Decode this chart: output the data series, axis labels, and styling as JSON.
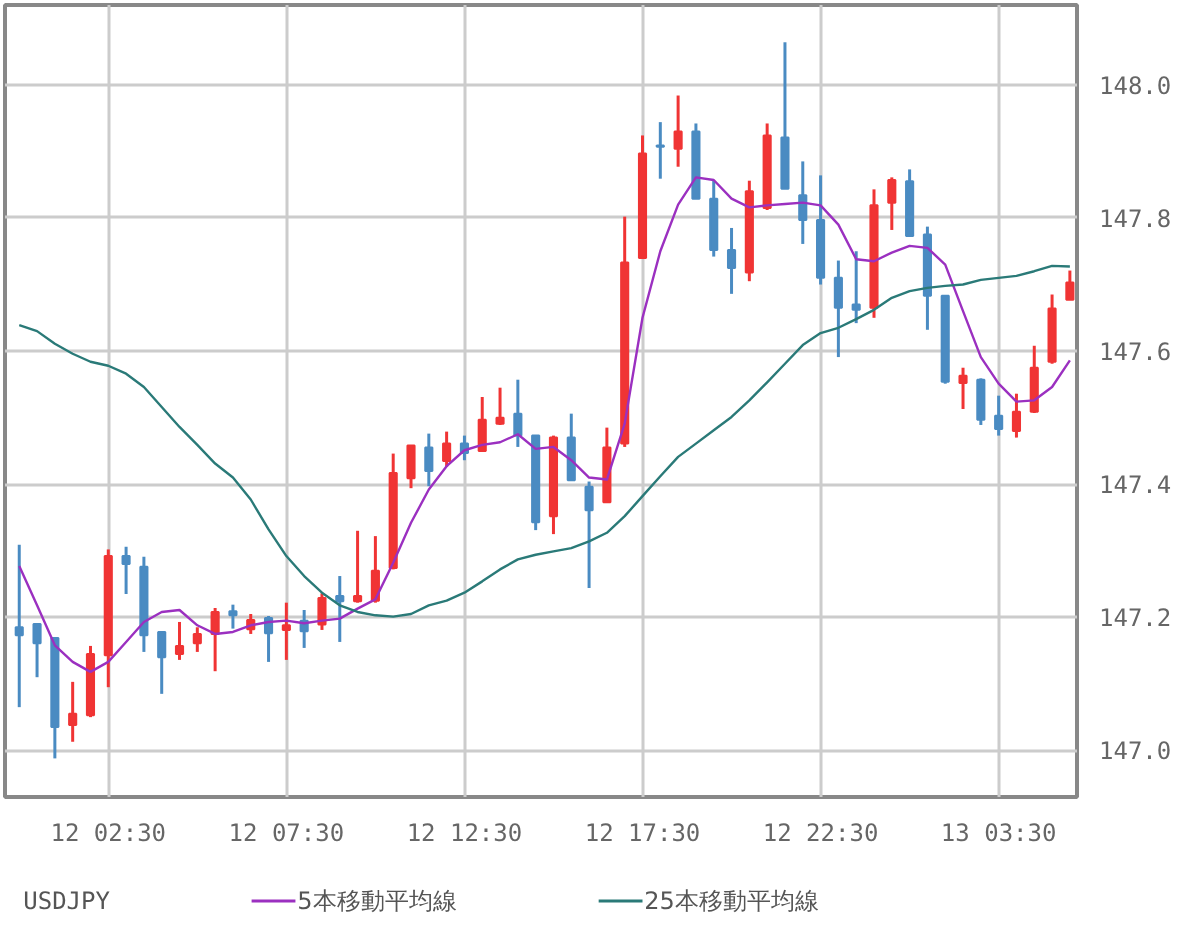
{
  "chart_data": {
    "type": "candlestick",
    "annotations": [
      "USDJPY"
    ],
    "categories": [
      null,
      null,
      null,
      null,
      null,
      "12 02:30",
      null,
      null,
      null,
      null,
      null,
      null,
      null,
      null,
      null,
      "12 07:30",
      null,
      null,
      null,
      null,
      null,
      null,
      null,
      null,
      null,
      "12 12:30",
      null,
      null,
      null,
      null,
      null,
      null,
      null,
      null,
      null,
      "12 17:30",
      null,
      null,
      null,
      null,
      null,
      null,
      null,
      null,
      null,
      "12 22:30",
      null,
      null,
      null,
      null,
      null,
      null,
      null,
      null,
      null,
      "13 03:30",
      null,
      null,
      null,
      null
    ],
    "ohlc": [
      [
        147.185,
        147.309,
        147.065,
        147.173
      ],
      [
        147.19,
        147.19,
        147.11,
        147.161
      ],
      [
        147.169,
        147.169,
        146.988,
        147.035
      ],
      [
        147.038,
        147.103,
        147.013,
        147.055
      ],
      [
        147.053,
        147.157,
        147.05,
        147.145
      ],
      [
        147.143,
        147.302,
        147.095,
        147.292
      ],
      [
        147.292,
        147.306,
        147.235,
        147.28
      ],
      [
        147.276,
        147.291,
        147.148,
        147.173
      ],
      [
        147.178,
        147.178,
        147.085,
        147.14
      ],
      [
        147.145,
        147.193,
        147.136,
        147.157
      ],
      [
        147.161,
        147.185,
        147.148,
        147.175
      ],
      [
        147.175,
        147.214,
        147.119,
        147.208
      ],
      [
        147.209,
        147.219,
        147.183,
        147.203
      ],
      [
        147.182,
        147.205,
        147.175,
        147.196
      ],
      [
        147.199,
        147.202,
        147.133,
        147.176
      ],
      [
        147.181,
        147.222,
        147.136,
        147.188
      ],
      [
        147.195,
        147.211,
        147.154,
        147.179
      ],
      [
        147.189,
        147.236,
        147.181,
        147.229
      ],
      [
        147.232,
        147.262,
        147.163,
        147.224
      ],
      [
        147.224,
        147.33,
        147.222,
        147.232
      ],
      [
        147.225,
        147.322,
        147.222,
        147.27
      ],
      [
        147.274,
        147.446,
        147.272,
        147.417
      ],
      [
        147.409,
        147.458,
        147.394,
        147.458
      ],
      [
        147.455,
        147.476,
        147.397,
        147.42
      ],
      [
        147.435,
        147.479,
        147.426,
        147.461
      ],
      [
        147.461,
        147.473,
        147.436,
        147.447
      ],
      [
        147.45,
        147.531,
        147.45,
        147.497
      ],
      [
        147.491,
        147.545,
        147.489,
        147.5
      ],
      [
        147.506,
        147.557,
        147.456,
        147.473
      ],
      [
        147.473,
        147.473,
        147.331,
        147.343
      ],
      [
        147.352,
        147.473,
        147.325,
        147.47
      ],
      [
        147.47,
        147.506,
        147.406,
        147.406
      ],
      [
        147.396,
        147.404,
        147.244,
        147.361
      ],
      [
        147.373,
        147.485,
        147.373,
        147.455
      ],
      [
        147.461,
        147.802,
        147.456,
        147.733
      ],
      [
        147.74,
        147.924,
        147.74,
        147.897
      ],
      [
        147.909,
        147.944,
        147.859,
        147.907
      ],
      [
        147.904,
        147.984,
        147.877,
        147.93
      ],
      [
        147.93,
        147.942,
        147.829,
        147.829
      ],
      [
        147.829,
        147.856,
        147.742,
        147.752
      ],
      [
        147.752,
        147.785,
        147.686,
        147.725
      ],
      [
        147.718,
        147.856,
        147.705,
        147.84
      ],
      [
        147.815,
        147.942,
        147.812,
        147.924
      ],
      [
        147.921,
        148.064,
        147.844,
        147.844
      ],
      [
        147.834,
        147.885,
        147.761,
        147.797
      ],
      [
        147.797,
        147.864,
        147.7,
        147.71
      ],
      [
        147.71,
        147.736,
        147.591,
        147.665
      ],
      [
        147.67,
        147.75,
        147.642,
        147.662
      ],
      [
        147.665,
        147.843,
        147.65,
        147.819
      ],
      [
        147.823,
        147.861,
        147.782,
        147.857
      ],
      [
        147.855,
        147.873,
        147.773,
        147.773
      ],
      [
        147.775,
        147.787,
        147.632,
        147.683
      ],
      [
        147.683,
        147.683,
        147.551,
        147.554
      ],
      [
        147.552,
        147.575,
        147.513,
        147.563
      ],
      [
        147.557,
        147.559,
        147.489,
        147.497
      ],
      [
        147.503,
        147.533,
        147.473,
        147.483
      ],
      [
        147.48,
        147.536,
        147.47,
        147.509
      ],
      [
        147.509,
        147.608,
        147.507,
        147.575
      ],
      [
        147.584,
        147.685,
        147.581,
        147.664
      ],
      [
        147.677,
        147.721,
        147.677,
        147.703
      ]
    ],
    "colors": [
      "#4a8bc2",
      "#4a8bc2",
      "#4a8bc2",
      "#f03434",
      "#f03434",
      "#f03434",
      "#4a8bc2",
      "#4a8bc2",
      "#4a8bc2",
      "#f03434",
      "#f03434",
      "#f03434",
      "#4a8bc2",
      "#f03434",
      "#4a8bc2",
      "#f03434",
      "#4a8bc2",
      "#f03434",
      "#4a8bc2",
      "#f03434",
      "#f03434",
      "#f03434",
      "#f03434",
      "#4a8bc2",
      "#f03434",
      "#4a8bc2",
      "#f03434",
      "#f03434",
      "#4a8bc2",
      "#4a8bc2",
      "#f03434",
      "#4a8bc2",
      "#4a8bc2",
      "#f03434",
      "#f03434",
      "#f03434",
      "#4a8bc2",
      "#f03434",
      "#4a8bc2",
      "#4a8bc2",
      "#4a8bc2",
      "#f03434",
      "#f03434",
      "#4a8bc2",
      "#4a8bc2",
      "#4a8bc2",
      "#4a8bc2",
      "#4a8bc2",
      "#f03434",
      "#f03434",
      "#4a8bc2",
      "#4a8bc2",
      "#4a8bc2",
      "#f03434",
      "#4a8bc2",
      "#4a8bc2",
      "#f03434",
      "#f03434",
      "#f03434",
      "#f03434"
    ],
    "series": [
      {
        "name": "5本移動平均線",
        "type": "line",
        "color": "#9b30c0",
        "values": [
          147.277,
          147.218,
          147.158,
          147.133,
          147.118,
          147.133,
          147.163,
          147.193,
          147.208,
          147.211,
          147.188,
          147.175,
          147.178,
          147.188,
          147.193,
          147.195,
          147.191,
          147.195,
          147.198,
          147.213,
          147.227,
          147.282,
          147.342,
          147.392,
          147.427,
          147.451,
          147.459,
          147.463,
          147.475,
          147.453,
          147.456,
          147.436,
          147.41,
          147.407,
          147.491,
          147.65,
          147.75,
          147.82,
          147.861,
          147.857,
          147.829,
          147.816,
          147.819,
          147.821,
          147.823,
          147.819,
          147.79,
          147.738,
          147.735,
          147.748,
          147.758,
          147.755,
          147.73,
          147.66,
          147.591,
          147.551,
          147.524,
          147.526,
          147.546,
          147.586
        ]
      },
      {
        "name": "25本移動平均線",
        "type": "line",
        "color": "#2a7a78",
        "values": [
          147.639,
          147.63,
          147.611,
          147.596,
          147.584,
          147.578,
          147.566,
          147.546,
          147.516,
          147.486,
          147.459,
          147.431,
          147.41,
          147.377,
          147.332,
          147.292,
          147.262,
          147.237,
          147.218,
          147.208,
          147.203,
          147.201,
          147.205,
          147.218,
          147.225,
          147.237,
          147.254,
          147.272,
          147.287,
          147.294,
          147.299,
          147.304,
          147.314,
          147.327,
          147.352,
          147.382,
          147.412,
          147.441,
          147.461,
          147.481,
          147.501,
          147.526,
          147.553,
          147.581,
          147.609,
          147.627,
          147.635,
          147.648,
          147.662,
          147.68,
          147.69,
          147.695,
          147.698,
          147.7,
          147.707,
          147.71,
          147.713,
          147.72,
          147.728,
          147.727
        ]
      }
    ],
    "ylim": [
      146.93,
      148.12
    ],
    "yticks": [
      {
        "value": 147.0,
        "label": "147.0"
      },
      147.2,
      147.4,
      147.6,
      147.8,
      {
        "value": 148.0,
        "label": "148.0"
      }
    ],
    "grid": true,
    "legend": "bottom"
  }
}
